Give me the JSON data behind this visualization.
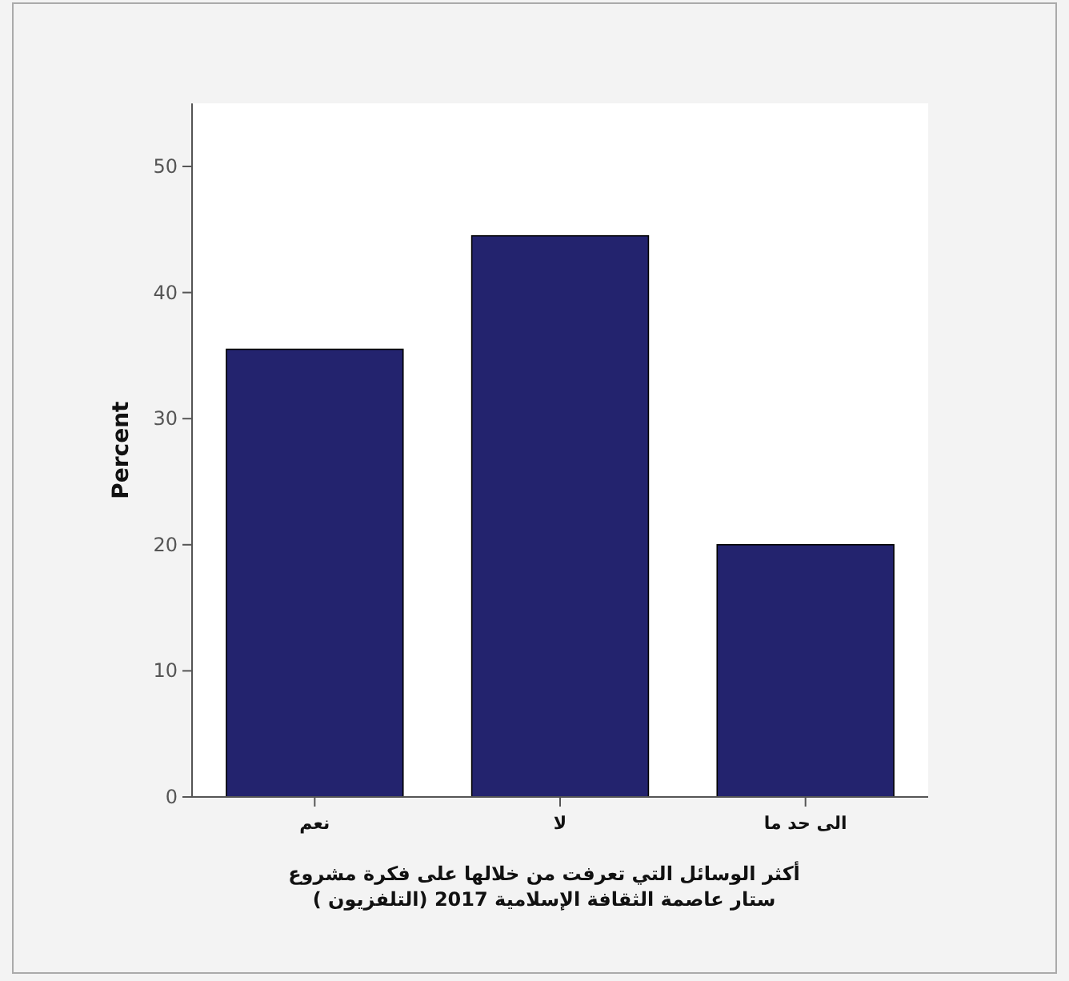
{
  "chart_data": {
    "type": "bar",
    "categories": [
      "نعم",
      "لا",
      "الى حد ما"
    ],
    "values": [
      35.5,
      44.5,
      20
    ],
    "color": "#23236e",
    "ylim": [
      0,
      55
    ],
    "yticks": [
      0,
      10,
      20,
      30,
      40,
      50
    ],
    "ylabel": "Percent",
    "xlabel": "أكثر الوسائل التي تعرفت من خلالها على فكرة مشروع ستار عاصمة الثقافة الإسلامية 2017 (التلفزيون )",
    "grid": false
  }
}
